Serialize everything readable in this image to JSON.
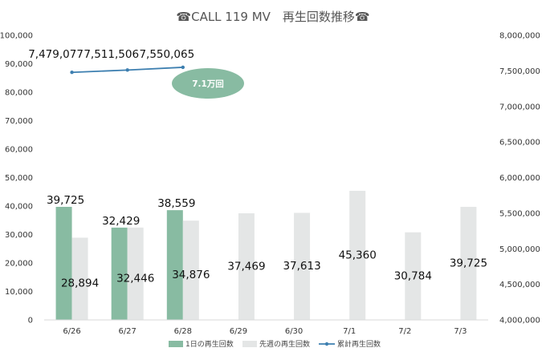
{
  "chart_data": {
    "type": "bar",
    "title": "☎CALL 119 MV　再生回数推移☎",
    "categories": [
      "6/26",
      "6/27",
      "6/28",
      "6/29",
      "6/30",
      "7/1",
      "7/2",
      "7/3"
    ],
    "series": [
      {
        "name": "1日の再生回数",
        "type": "bar",
        "axis": "left",
        "color": "#88bba2",
        "values": [
          39725,
          32429,
          38559,
          null,
          null,
          null,
          null,
          null
        ],
        "labels": [
          "39,725",
          "32,429",
          "38,559"
        ]
      },
      {
        "name": "先週の再生回数",
        "type": "bar",
        "axis": "left",
        "color": "#e4e6e6",
        "values": [
          28894,
          32446,
          34876,
          37469,
          37613,
          45360,
          30784,
          39725
        ],
        "labels": [
          "28,894",
          "32,446",
          "34,876",
          "37,469",
          "37,613",
          "45,360",
          "30,784",
          "39,725"
        ]
      },
      {
        "name": "累計再生回数",
        "type": "line",
        "axis": "right",
        "color": "#3d7fb0",
        "values": [
          7479077,
          7511506,
          7550065,
          null,
          null,
          null,
          null,
          null
        ],
        "labels": [
          "7,479,077",
          "7,511,506",
          "7,550,065"
        ]
      }
    ],
    "ylim_left": [
      0,
      100000
    ],
    "yticks_left": [
      "0",
      "10,000",
      "20,000",
      "30,000",
      "40,000",
      "50,000",
      "60,000",
      "70,000",
      "80,000",
      "90,000",
      "100,000"
    ],
    "ylim_right": [
      4000000,
      8000000
    ],
    "yticks_right": [
      "4,000,000",
      "4,500,000",
      "5,000,000",
      "5,500,000",
      "6,000,000",
      "6,500,000",
      "7,000,000",
      "7,500,000",
      "8,000,000"
    ],
    "annotation": {
      "text": "7.1万回",
      "color": "#88bba2"
    },
    "legend_position": "bottom",
    "grid": false
  }
}
